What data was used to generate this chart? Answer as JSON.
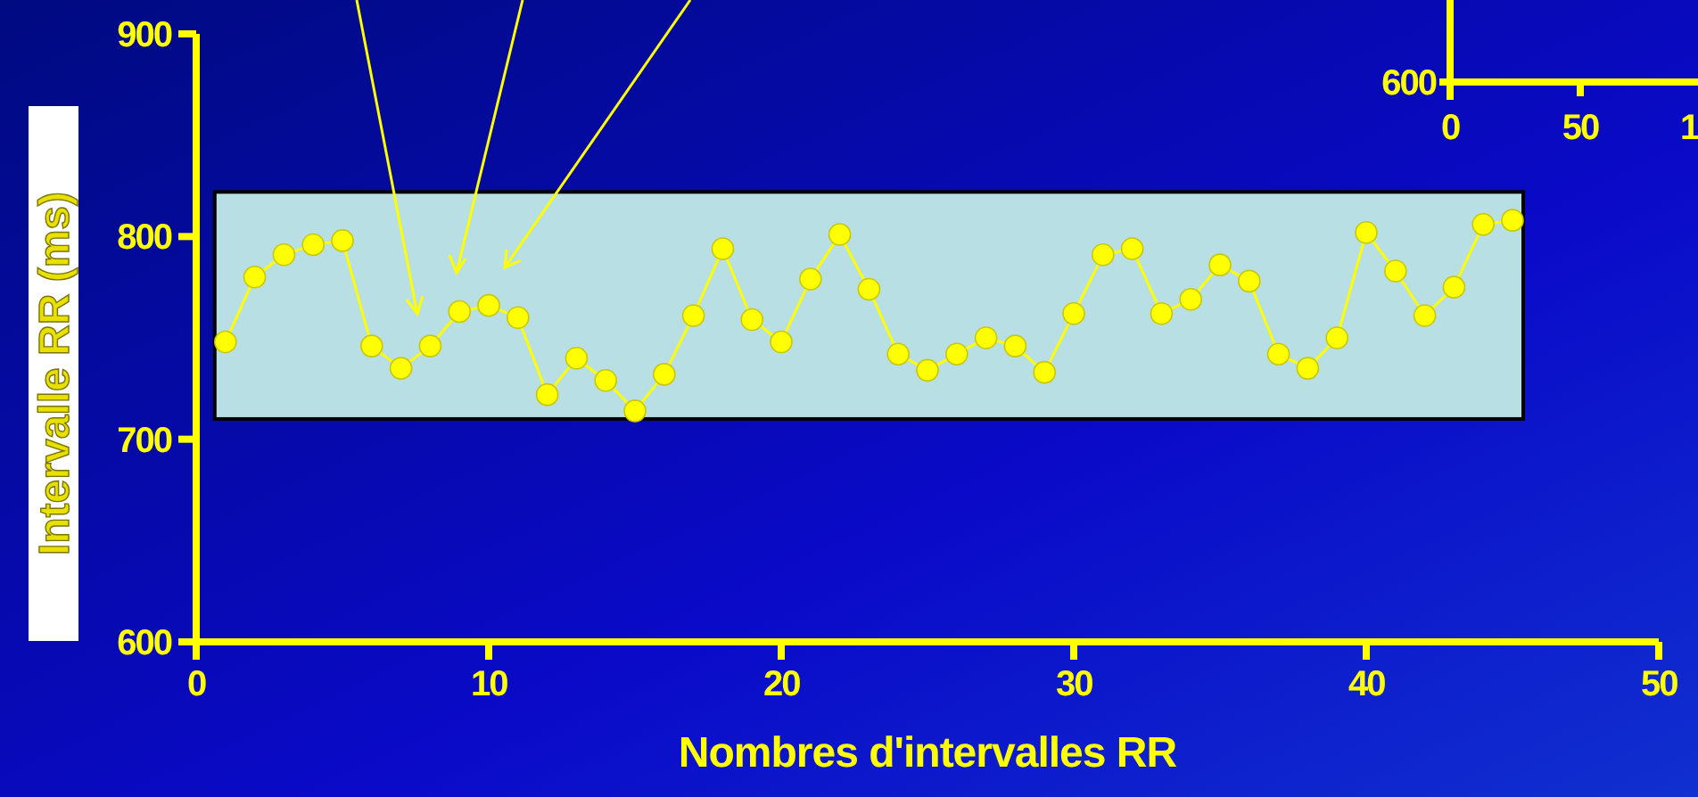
{
  "chart_data": [
    {
      "type": "line",
      "xlabel": "Nombres d'intervalles RR",
      "ylabel": "Intervalle RR  (ms)",
      "x": [
        1,
        2,
        3,
        4,
        5,
        6,
        7,
        8,
        9,
        10,
        11,
        12,
        13,
        14,
        15,
        16,
        17,
        18,
        19,
        20,
        21,
        22,
        23,
        24,
        25,
        26,
        27,
        28,
        29,
        30,
        31,
        32,
        33,
        34,
        35,
        36,
        37,
        38,
        39,
        40,
        41,
        42,
        43,
        44,
        45
      ],
      "series": [
        {
          "color": "#ffff00",
          "values": [
            748,
            780,
            791,
            796,
            798,
            746,
            735,
            746,
            763,
            766,
            760,
            722,
            740,
            729,
            714,
            732,
            761,
            794,
            759,
            748,
            779,
            801,
            774,
            742,
            734,
            742,
            750,
            746,
            733,
            762,
            791,
            794,
            762,
            769,
            786,
            778,
            742,
            735,
            750,
            802,
            783,
            761,
            775,
            806,
            808
          ]
        }
      ],
      "xlim": [
        0,
        50
      ],
      "xticks": [
        0,
        10,
        20,
        30,
        40,
        50
      ],
      "ylim": [
        600,
        900
      ],
      "yticks": [
        600,
        700,
        800,
        900
      ],
      "marker": "circle",
      "line_style": "solid",
      "bands": [
        {
          "axis": "y",
          "from": 710,
          "to": 822,
          "color": "#b8dfe3"
        }
      ]
    },
    {
      "type": "other",
      "annotations": [
        "600",
        "0",
        "50",
        "1"
      ]
    }
  ]
}
